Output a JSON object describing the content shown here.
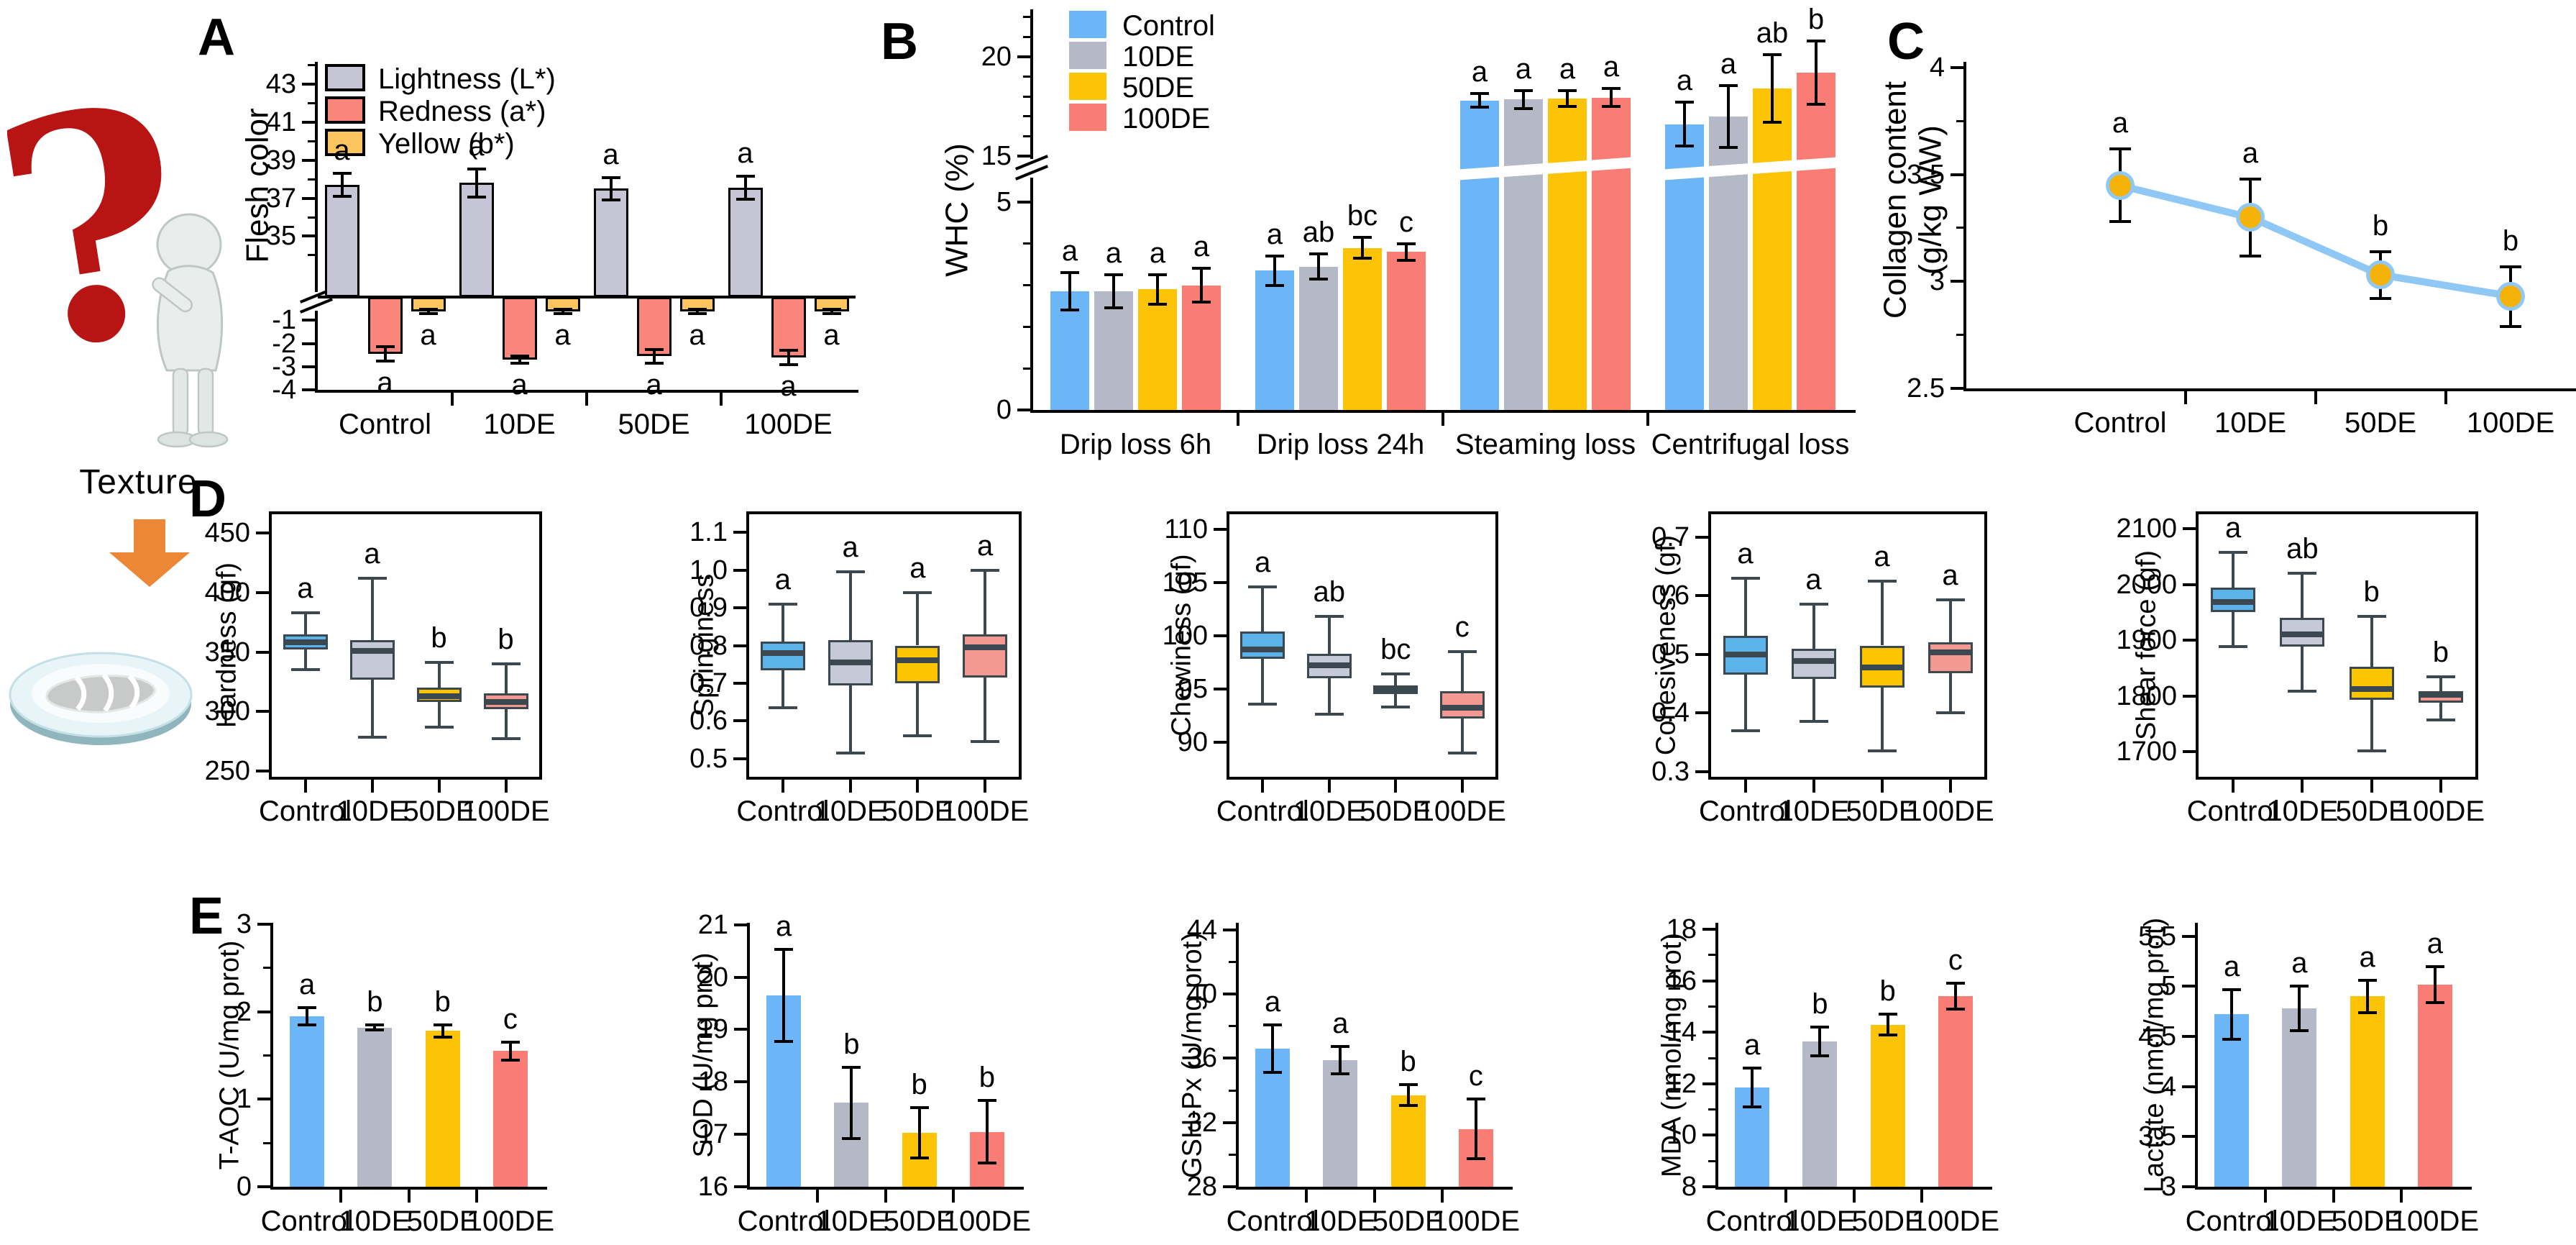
{
  "panels": [
    {
      "id": "A",
      "label": "A"
    },
    {
      "id": "B",
      "label": "B"
    },
    {
      "id": "C",
      "label": "C"
    },
    {
      "id": "D",
      "label": "D"
    },
    {
      "id": "E",
      "label": "E"
    }
  ],
  "left_graphic": {
    "texture_label": "Texture",
    "icons": [
      "question-mark-icon",
      "thinking-person-icon",
      "down-arrow-icon",
      "fish-plate-icon"
    ],
    "arrow_color": "#ec8735",
    "question_mark_color": "#b81414"
  },
  "palette": {
    "control": "#6cb5f7",
    "de10": "#b5b8c6",
    "de50": "#fdc306",
    "de100": "#fa7d75"
  },
  "groups": [
    "Control",
    "10DE",
    "50DE",
    "100DE"
  ],
  "chart_data": [
    {
      "id": "A",
      "type": "grouped_bar",
      "panel": "A",
      "title": "",
      "ylabel": "Flesh color",
      "categories": [
        "Control",
        "10DE",
        "50DE",
        "100DE"
      ],
      "series": [
        {
          "name": "Lightness (L*)",
          "color": "#c6c5d5",
          "values": [
            37.7,
            37.8,
            37.5,
            37.55
          ],
          "errors": [
            0.6,
            0.75,
            0.6,
            0.6
          ],
          "letters": [
            "a",
            "a",
            "a",
            "a"
          ]
        },
        {
          "name": "Redness (a*)",
          "color": "#f9857b",
          "values": [
            -2.45,
            -2.7,
            -2.55,
            -2.6
          ],
          "errors": [
            0.3,
            0.15,
            0.3,
            0.3
          ],
          "letters": [
            "a",
            "a",
            "a",
            "a"
          ]
        },
        {
          "name": "Yellow (b*)",
          "color": "#fbc45f",
          "values": [
            -0.62,
            -0.62,
            -0.62,
            -0.62
          ],
          "errors": [
            0.1,
            0.1,
            0.1,
            0.1
          ],
          "letters": [
            "a",
            "a",
            "a",
            "a"
          ]
        }
      ],
      "bar_border": "#000000",
      "legend_position": "top-left",
      "y_axis": {
        "broken": true,
        "segments": [
          {
            "tick_values": [
              -4,
              -3,
              -2,
              -1
            ],
            "tick_labels": [
              "-4",
              "-3",
              "-2",
              "-1"
            ],
            "minor": [],
            "range": [
              -4,
              0
            ]
          },
          {
            "tick_values": [
              35,
              37,
              39,
              41,
              43
            ],
            "tick_labels": [
              "35",
              "37",
              "39",
              "41",
              "43"
            ],
            "minor": [
              34,
              36,
              38,
              40,
              42,
              44
            ],
            "range": [
              31.8,
              44.1
            ]
          }
        ]
      }
    },
    {
      "id": "B",
      "type": "grouped_bar",
      "panel": "B",
      "title": "",
      "ylabel": "WHC (%)",
      "categories": [
        "Drip loss 6h",
        "Drip loss 24h",
        "Steaming loss",
        "Centrifugal loss"
      ],
      "series": [
        {
          "name": "Control",
          "color": "#6cb5f7",
          "values": [
            2.85,
            3.35,
            17.8,
            16.6
          ],
          "errors": [
            0.45,
            0.35,
            0.35,
            1.1
          ],
          "letters": [
            "a",
            "a",
            "a",
            "a"
          ]
        },
        {
          "name": "10DE",
          "color": "#b5b8c6",
          "values": [
            2.85,
            3.45,
            17.85,
            17.0
          ],
          "errors": [
            0.4,
            0.3,
            0.45,
            1.55
          ],
          "letters": [
            "a",
            "ab",
            "a",
            "a"
          ]
        },
        {
          "name": "50DE",
          "color": "#fdc306",
          "values": [
            2.9,
            3.9,
            17.9,
            18.4
          ],
          "errors": [
            0.35,
            0.25,
            0.4,
            1.7
          ],
          "letters": [
            "a",
            "bc",
            "a",
            "ab"
          ]
        },
        {
          "name": "100DE",
          "color": "#fa7d75",
          "values": [
            3.0,
            3.8,
            17.95,
            19.2
          ],
          "errors": [
            0.4,
            0.2,
            0.45,
            1.6
          ],
          "letters": [
            "a",
            "c",
            "a",
            "b"
          ]
        }
      ],
      "bar_border": null,
      "legend_position": "top-left",
      "y_axis": {
        "broken": true,
        "segments": [
          {
            "tick_values": [
              0,
              5
            ],
            "tick_labels": [
              "0",
              "5"
            ],
            "minor": [
              1,
              2,
              3,
              4
            ],
            "range": [
              0,
              5.76
            ]
          },
          {
            "tick_values": [
              15,
              20
            ],
            "tick_labels": [
              "15",
              "20"
            ],
            "minor": [
              16,
              17,
              18,
              19,
              21,
              22
            ],
            "range": [
              14.49,
              22.32
            ]
          }
        ]
      }
    },
    {
      "id": "C",
      "type": "line",
      "panel": "C",
      "title": "",
      "ylabel_lines": [
        "Collagen content",
        "(g/kg WW)"
      ],
      "categories": [
        "Control",
        "10DE",
        "50DE",
        "100DE"
      ],
      "values": [
        3.45,
        3.3,
        3.03,
        2.93
      ],
      "errors": [
        0.17,
        0.18,
        0.11,
        0.14
      ],
      "letters": [
        "a",
        "a",
        "b",
        "b"
      ],
      "line_color": "#8fc8f5",
      "marker_fill": "#f5b30a",
      "marker_edge": "#8fc8f5",
      "y_axis": {
        "tick_values": [
          2.5,
          3,
          3.5,
          4
        ],
        "tick_labels": [
          "2.5",
          "3",
          "3.5",
          "4"
        ],
        "minor": [
          2.75,
          3.25,
          3.75
        ],
        "range": [
          2.5,
          4.02
        ]
      }
    },
    {
      "id": "D1",
      "type": "box",
      "panel": "D",
      "ylabel": "Hardness  (gf)",
      "categories": [
        "Control",
        "10DE",
        "50DE",
        "100DE"
      ],
      "boxes": [
        {
          "group": "Control",
          "color": "#5bb3e9",
          "low": 335,
          "q1": 352,
          "median": 358,
          "q3": 365,
          "high": 383,
          "letter": "a"
        },
        {
          "group": "10DE",
          "color": "#c6c9d8",
          "low": 278,
          "q1": 327,
          "median": 351,
          "q3": 360,
          "high": 412,
          "letter": "a"
        },
        {
          "group": "50DE",
          "color": "#fdc400",
          "low": 287,
          "q1": 308,
          "median": 313,
          "q3": 320,
          "high": 341,
          "letter": "b"
        },
        {
          "group": "100DE",
          "color": "#f29992",
          "low": 277,
          "q1": 302,
          "median": 308,
          "q3": 315,
          "high": 340,
          "letter": "b"
        }
      ],
      "y_axis": {
        "tick_values": [
          250,
          300,
          350,
          400,
          450
        ],
        "tick_labels": [
          "250",
          "300",
          "350",
          "400",
          "450"
        ],
        "minor": [],
        "range": [
          245,
          466
        ]
      }
    },
    {
      "id": "D2",
      "type": "box",
      "panel": "D",
      "ylabel": "Springiness",
      "categories": [
        "Control",
        "10DE",
        "50DE",
        "100DE"
      ],
      "boxes": [
        {
          "group": "Control",
          "color": "#5bb3e9",
          "low": 0.635,
          "q1": 0.735,
          "median": 0.78,
          "q3": 0.81,
          "high": 0.91,
          "letter": "a"
        },
        {
          "group": "10DE",
          "color": "#c6c9d8",
          "low": 0.515,
          "q1": 0.695,
          "median": 0.755,
          "q3": 0.815,
          "high": 0.995,
          "letter": "a"
        },
        {
          "group": "50DE",
          "color": "#fdc400",
          "low": 0.56,
          "q1": 0.7,
          "median": 0.76,
          "q3": 0.8,
          "high": 0.94,
          "letter": "a"
        },
        {
          "group": "100DE",
          "color": "#f29992",
          "low": 0.545,
          "q1": 0.715,
          "median": 0.795,
          "q3": 0.83,
          "high": 1.0,
          "letter": "a"
        }
      ],
      "y_axis": {
        "tick_values": [
          0.5,
          0.6,
          0.7,
          0.8,
          0.9,
          1.0,
          1.1
        ],
        "tick_labels": [
          "0.5",
          "0.6",
          "0.7",
          "0.8",
          "0.9",
          "1.0",
          "1.1"
        ],
        "minor": [],
        "range": [
          0.452,
          1.148
        ]
      }
    },
    {
      "id": "D3",
      "type": "box",
      "panel": "D",
      "ylabel": "Chewiness (gf)",
      "categories": [
        "Control",
        "10DE",
        "50DE",
        "100DE"
      ],
      "boxes": [
        {
          "group": "Control",
          "color": "#5bb3e9",
          "low": 93.6,
          "q1": 97.8,
          "median": 98.7,
          "q3": 100.4,
          "high": 104.6,
          "letter": "a"
        },
        {
          "group": "10DE",
          "color": "#c6c9d8",
          "low": 92.6,
          "q1": 96.0,
          "median": 97.2,
          "q3": 98.3,
          "high": 101.8,
          "letter": "ab"
        },
        {
          "group": "50DE",
          "color": "#fdc400",
          "low": 93.3,
          "q1": 94.5,
          "median": 94.9,
          "q3": 95.3,
          "high": 96.4,
          "letter": "bc"
        },
        {
          "group": "100DE",
          "color": "#f29992",
          "low": 89.0,
          "q1": 92.2,
          "median": 93.2,
          "q3": 94.8,
          "high": 98.5,
          "letter": "c"
        }
      ],
      "y_axis": {
        "tick_values": [
          90,
          95,
          100,
          105,
          110
        ],
        "tick_labels": [
          "90",
          "95",
          "100",
          "105",
          "110"
        ],
        "minor": [],
        "range": [
          86.75,
          111.4
        ]
      }
    },
    {
      "id": "D4",
      "type": "box",
      "panel": "D",
      "ylabel": "Cohesiveness  (gf)",
      "categories": [
        "Control",
        "10DE",
        "50DE",
        "100DE"
      ],
      "boxes": [
        {
          "group": "Control",
          "color": "#5bb3e9",
          "low": 0.37,
          "q1": 0.465,
          "median": 0.5,
          "q3": 0.532,
          "high": 0.63,
          "letter": "a"
        },
        {
          "group": "10DE",
          "color": "#c6c9d8",
          "low": 0.385,
          "q1": 0.458,
          "median": 0.488,
          "q3": 0.51,
          "high": 0.585,
          "letter": "a"
        },
        {
          "group": "50DE",
          "color": "#fdc400",
          "low": 0.335,
          "q1": 0.443,
          "median": 0.478,
          "q3": 0.515,
          "high": 0.625,
          "letter": "a"
        },
        {
          "group": "100DE",
          "color": "#f29992",
          "low": 0.4,
          "q1": 0.468,
          "median": 0.503,
          "q3": 0.52,
          "high": 0.593,
          "letter": "a"
        }
      ],
      "y_axis": {
        "tick_values": [
          0.3,
          0.4,
          0.5,
          0.6,
          0.7
        ],
        "tick_labels": [
          "0.3",
          "0.4",
          "0.5",
          "0.6",
          "0.7"
        ],
        "minor": [],
        "range": [
          0.291,
          0.739
        ]
      }
    },
    {
      "id": "D5",
      "type": "box",
      "panel": "D",
      "ylabel": "Shear force (gf)",
      "categories": [
        "Control",
        "10DE",
        "50DE",
        "100DE"
      ],
      "boxes": [
        {
          "group": "Control",
          "color": "#5bb3e9",
          "low": 1888,
          "q1": 1950,
          "median": 1968,
          "q3": 1995,
          "high": 2058,
          "letter": "a"
        },
        {
          "group": "10DE",
          "color": "#c6c9d8",
          "low": 1808,
          "q1": 1888,
          "median": 1910,
          "q3": 1940,
          "high": 2020,
          "letter": "ab"
        },
        {
          "group": "50DE",
          "color": "#fdc400",
          "low": 1702,
          "q1": 1793,
          "median": 1812,
          "q3": 1852,
          "high": 1943,
          "letter": "b"
        },
        {
          "group": "100DE",
          "color": "#f29992",
          "low": 1757,
          "q1": 1788,
          "median": 1802,
          "q3": 1808,
          "high": 1835,
          "letter": "b"
        }
      ],
      "y_axis": {
        "tick_values": [
          1700,
          1800,
          1900,
          2000,
          2100
        ],
        "tick_labels": [
          "1700",
          "1800",
          "1900",
          "2000",
          "2100"
        ],
        "minor": [],
        "range": [
          1655,
          2126
        ]
      }
    },
    {
      "id": "E1",
      "type": "bar",
      "panel": "E",
      "ylabel": "T-AOC (U/mg prot)",
      "categories": [
        "Control",
        "10DE",
        "50DE",
        "100DE"
      ],
      "colors": [
        "#6cb5f7",
        "#b5b8c6",
        "#fdc306",
        "#fa7d75"
      ],
      "values": [
        1.95,
        1.82,
        1.78,
        1.55
      ],
      "errors": [
        0.1,
        0.03,
        0.07,
        0.1
      ],
      "letters": [
        "a",
        "b",
        "b",
        "c"
      ],
      "y_axis": {
        "tick_values": [
          0,
          1,
          2,
          3
        ],
        "tick_labels": [
          "0",
          "1",
          "2",
          "3"
        ],
        "minor": [
          0.5,
          1.5,
          2.5
        ],
        "range": [
          0,
          3.0
        ]
      }
    },
    {
      "id": "E2",
      "type": "bar",
      "panel": "E",
      "ylabel": "SOD (U/mg prot)",
      "categories": [
        "Control",
        "10DE",
        "50DE",
        "100DE"
      ],
      "colors": [
        "#6cb5f7",
        "#b5b8c6",
        "#fdc306",
        "#fa7d75"
      ],
      "values": [
        19.65,
        17.6,
        17.03,
        17.05
      ],
      "errors": [
        0.88,
        0.68,
        0.48,
        0.6
      ],
      "letters": [
        "a",
        "b",
        "b",
        "b"
      ],
      "y_axis": {
        "tick_values": [
          16,
          17,
          18,
          19,
          20,
          21
        ],
        "tick_labels": [
          "16",
          "17",
          "18",
          "19",
          "20",
          "21"
        ],
        "minor": [],
        "range": [
          16,
          21.01
        ]
      }
    },
    {
      "id": "E3",
      "type": "bar",
      "panel": "E",
      "ylabel": "GSH-Px (U/mg prot)",
      "categories": [
        "Control",
        "10DE",
        "50DE",
        "100DE"
      ],
      "colors": [
        "#6cb5f7",
        "#b5b8c6",
        "#fdc306",
        "#fa7d75"
      ],
      "values": [
        36.6,
        35.9,
        33.7,
        31.6
      ],
      "errors": [
        1.5,
        0.85,
        0.65,
        1.85
      ],
      "letters": [
        "a",
        "a",
        "b",
        "c"
      ],
      "y_axis": {
        "tick_values": [
          28,
          32,
          36,
          40,
          44
        ],
        "tick_labels": [
          "28",
          "32",
          "36",
          "40",
          "44"
        ],
        "minor": [
          30,
          34,
          38,
          42
        ],
        "range": [
          28,
          44.35
        ]
      }
    },
    {
      "id": "E4",
      "type": "bar",
      "panel": "E",
      "ylabel": "MDA (nmol/mg prot)",
      "categories": [
        "Control",
        "10DE",
        "50DE",
        "100DE"
      ],
      "colors": [
        "#6cb5f7",
        "#b5b8c6",
        "#fdc306",
        "#fa7d75"
      ],
      "values": [
        11.85,
        13.65,
        14.3,
        15.4
      ],
      "errors": [
        0.75,
        0.55,
        0.4,
        0.5
      ],
      "letters": [
        "a",
        "b",
        "b",
        "c"
      ],
      "y_axis": {
        "tick_values": [
          8,
          10,
          12,
          14,
          16,
          18
        ],
        "tick_labels": [
          "8",
          "10",
          "12",
          "14",
          "16",
          "18"
        ],
        "minor": [
          9,
          11,
          13,
          15,
          17
        ],
        "range": [
          8,
          18.2
        ]
      }
    },
    {
      "id": "E5",
      "type": "bar",
      "panel": "E",
      "ylabel": "Lactate (nmol/mg prot)",
      "categories": [
        "Control",
        "10DE",
        "50DE",
        "100DE"
      ],
      "colors": [
        "#6cb5f7",
        "#b5b8c6",
        "#fdc306",
        "#fa7d75"
      ],
      "values": [
        4.72,
        4.78,
        4.9,
        5.02
      ],
      "errors": [
        0.25,
        0.22,
        0.16,
        0.18
      ],
      "letters": [
        "a",
        "a",
        "a",
        "a"
      ],
      "y_axis": {
        "tick_values": [
          3,
          3.5,
          4,
          4.5,
          5,
          5.5
        ],
        "tick_labels": [
          "3",
          "3.5",
          "4",
          "4.5",
          "5",
          "5.5"
        ],
        "minor": [],
        "range": [
          3,
          5.62
        ]
      }
    }
  ]
}
